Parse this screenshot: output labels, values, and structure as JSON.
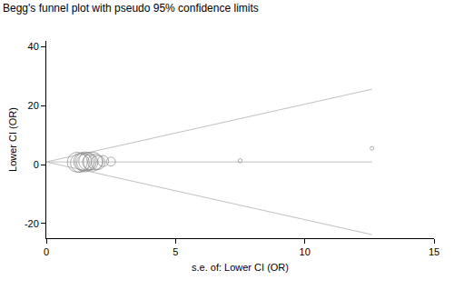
{
  "chart_data": {
    "type": "scatter",
    "title": "Begg's funnel plot with pseudo 95% confidence limits",
    "x_label": "s.e. of: Lower CI (OR)",
    "y_label": "Lower CI (OR)",
    "xlim": [
      0,
      15
    ],
    "xticks": [
      0,
      5,
      10,
      15
    ],
    "ylim": [
      -25,
      42
    ],
    "yticks": [
      -20,
      0,
      20,
      40
    ],
    "grid": false,
    "series": [
      {
        "type": "line",
        "x": [
          0,
          12.6
        ],
        "values": [
          0.9,
          25.6
        ],
        "color": "#c0c0c0",
        "line_style": "solid"
      },
      {
        "type": "line",
        "x": [
          0,
          12.6
        ],
        "values": [
          0.9,
          -23.8
        ],
        "color": "#c0c0c0",
        "line_style": "solid"
      },
      {
        "type": "line",
        "x": [
          0,
          12.6
        ],
        "values": [
          0.9,
          0.9
        ],
        "color": "#c0c0c0",
        "line_style": "solid"
      },
      {
        "type": "scatter",
        "marker": "circle",
        "color": "#8a8a8a",
        "x": [
          1.2,
          1.3,
          1.4,
          1.5,
          1.5,
          1.6,
          1.7,
          1.8,
          1.9,
          2.0,
          2.2,
          2.5,
          7.5,
          12.6
        ],
        "values": [
          0.8,
          0.6,
          1.0,
          0.9,
          0.7,
          1.1,
          0.8,
          1.0,
          0.9,
          0.7,
          1.2,
          1.0,
          1.3,
          5.5
        ],
        "sizes": [
          10,
          9,
          8,
          10,
          7,
          8,
          6,
          9,
          6,
          5,
          3,
          2,
          0.4,
          0.2
        ]
      }
    ]
  }
}
